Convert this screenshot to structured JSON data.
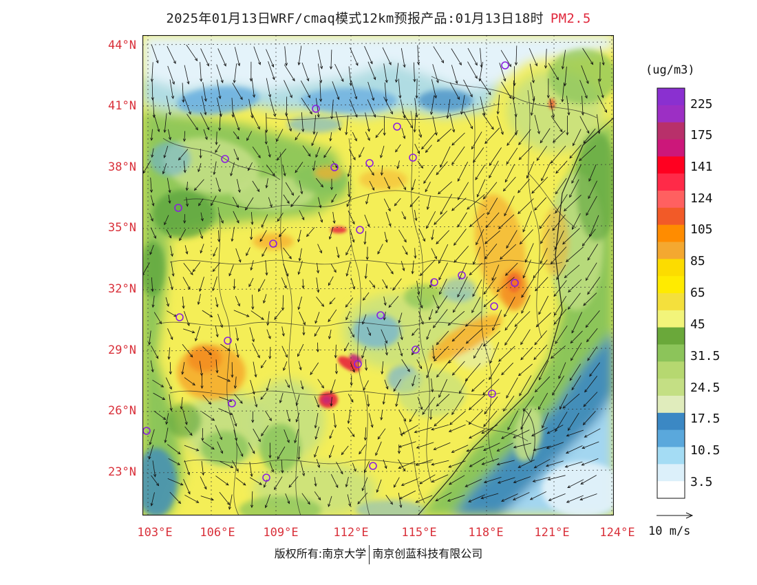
{
  "title": {
    "main": "2025年01月13日WRF/cmaq模式12km预报产品:01月13日18时",
    "pollutant": "PM2.5"
  },
  "map": {
    "lat_labels": [
      "44°N",
      "41°N",
      "38°N",
      "35°N",
      "32°N",
      "29°N",
      "26°N",
      "23°N"
    ],
    "lon_labels": [
      "103°E",
      "106°E",
      "109°E",
      "112°E",
      "115°E",
      "118°E",
      "121°E",
      "124°E"
    ],
    "colors": {
      "blue_dark": "#3b88c4",
      "blue_mid": "#6aafe0",
      "blue_light": "#a9daf2",
      "snow": "#e4f3fa",
      "green_dark": "#5aa33c",
      "green_mid": "#86c35a",
      "green_light": "#c2df84",
      "green_pale": "#e1edb8",
      "yellow": "#f4ee57",
      "yellow_strong": "#ffe100",
      "orange_light": "#f6b030",
      "orange": "#f28a20",
      "red_orange": "#ec5a2c",
      "red": "#e8253c",
      "magenta": "#c0267a",
      "purple": "#8a30d0",
      "label_red": "#d9303a"
    }
  },
  "colorbar": {
    "unit": "(ug/m3)",
    "labels": [
      "225",
      "175",
      "141",
      "124",
      "105",
      "85",
      "65",
      "45",
      "31.5",
      "24.5",
      "17.5",
      "10.5",
      "3.5"
    ],
    "colors": [
      "#8a30d0",
      "#9c2fc4",
      "#b8306a",
      "#cc177a",
      "#ff0020",
      "#ff2a48",
      "#ff6060",
      "#f25a28",
      "#ff8c00",
      "#f4a830",
      "#fcdc00",
      "#ffeb00",
      "#f4e03c",
      "#f2f47a",
      "#6aa83a",
      "#8cc45a",
      "#b6d870",
      "#c4df84",
      "#e0ecbc",
      "#3b88c4",
      "#5aa8dc",
      "#a4dcf4",
      "#dcf0fa",
      "#ffffff"
    ]
  },
  "vector_reference": {
    "caption": "10 m/s"
  },
  "footer": {
    "rights": "版权所有:南京大学",
    "company": "南京创蓝科技有限公司"
  }
}
